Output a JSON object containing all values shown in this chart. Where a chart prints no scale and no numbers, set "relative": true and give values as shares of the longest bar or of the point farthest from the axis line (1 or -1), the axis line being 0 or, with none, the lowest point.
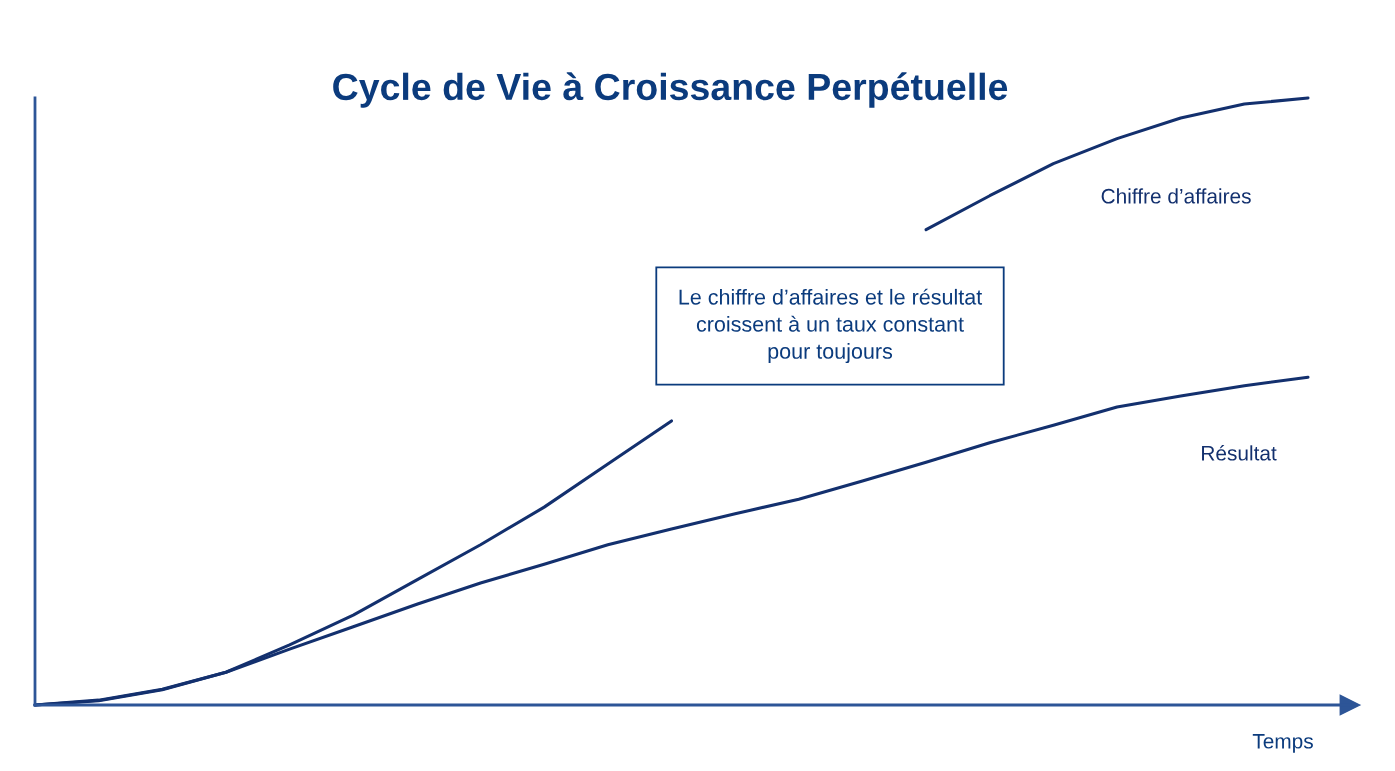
{
  "chart_data": {
    "type": "line",
    "title": "Cycle de Vie à Croissance Perpétuelle",
    "xlabel": "Temps",
    "relative": true,
    "categories": [
      null,
      null,
      null,
      null,
      null,
      null,
      null,
      null,
      null,
      null,
      null,
      null,
      null,
      null,
      null,
      null,
      null,
      null,
      null,
      null,
      null
    ],
    "series": [
      {
        "name": "Chiffre d’affaires",
        "color": "#13306e",
        "values": [
          0,
          0.007,
          0.025,
          0.054,
          0.099,
          0.148,
          0.206,
          0.264,
          0.326,
          0.397,
          0.468,
          null,
          null,
          null,
          0.783,
          0.839,
          0.892,
          0.933,
          0.967,
          0.99,
          1
        ]
      },
      {
        "name": "Résultat",
        "color": "#13306e",
        "values": [
          0,
          0.008,
          0.026,
          0.054,
          0.092,
          0.129,
          0.166,
          0.201,
          0.232,
          0.264,
          0.29,
          0.315,
          0.339,
          0.369,
          0.4,
          0.432,
          0.461,
          0.491,
          0.509,
          0.526,
          0.54
        ]
      }
    ],
    "annotations": [
      "Le chiffre d’affaires et le résultat\ncroissent à un taux constant\npour toujours"
    ],
    "legend": false,
    "marker": "none",
    "line_style": "solid"
  }
}
